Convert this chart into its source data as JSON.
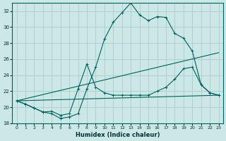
{
  "xlabel": "Humidex (Indice chaleur)",
  "bg_color": "#cce8e6",
  "grid_color": "#aaccca",
  "line_color": "#006060",
  "xlim": [
    -0.5,
    23.5
  ],
  "ylim": [
    18,
    33
  ],
  "xticks": [
    0,
    1,
    2,
    3,
    4,
    5,
    6,
    7,
    8,
    9,
    10,
    11,
    12,
    13,
    14,
    15,
    16,
    17,
    18,
    19,
    20,
    21,
    22,
    23
  ],
  "yticks": [
    18,
    20,
    22,
    24,
    26,
    28,
    30,
    32
  ],
  "curve1_x": [
    0,
    1,
    2,
    3,
    4,
    5,
    6,
    7,
    8,
    9,
    10,
    11,
    12,
    13,
    14,
    15,
    16,
    17,
    18,
    19,
    20,
    21,
    22,
    23
  ],
  "curve1_y": [
    20.8,
    20.4,
    19.9,
    19.4,
    19.2,
    18.6,
    18.8,
    19.2,
    22.3,
    25.0,
    28.5,
    30.6,
    31.8,
    33.0,
    31.5,
    30.8,
    31.3,
    31.2,
    29.2,
    28.6,
    27.0,
    22.8,
    21.8,
    21.5
  ],
  "curve2_x": [
    0,
    1,
    2,
    3,
    4,
    5,
    6,
    7,
    8,
    9,
    10,
    11,
    12,
    13,
    14,
    15,
    16,
    17,
    18,
    19,
    20,
    21,
    22,
    23
  ],
  "curve2_y": [
    20.8,
    20.4,
    19.9,
    19.4,
    19.5,
    19.0,
    19.2,
    22.3,
    25.4,
    22.5,
    21.8,
    21.5,
    21.5,
    21.5,
    21.5,
    21.5,
    22.0,
    22.5,
    23.5,
    24.8,
    25.0,
    22.8,
    21.8,
    21.5
  ],
  "line1_x": [
    0,
    23
  ],
  "line1_y": [
    20.8,
    21.5
  ],
  "line2_x": [
    0,
    23
  ],
  "line2_y": [
    20.8,
    26.8
  ]
}
